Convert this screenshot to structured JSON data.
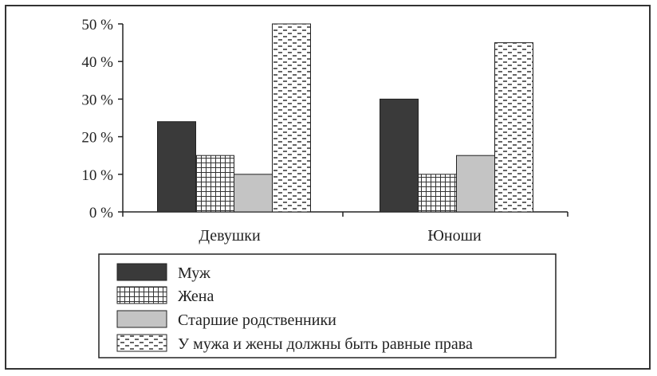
{
  "chart_data": {
    "type": "bar",
    "categories": [
      "Девушки",
      "Юноши"
    ],
    "series": [
      {
        "name": "Муж",
        "values": [
          24,
          30
        ],
        "color": "#3a3a3a",
        "pattern": "solid-dark"
      },
      {
        "name": "Жена",
        "values": [
          15,
          10
        ],
        "color": "#ffffff",
        "pattern": "grid"
      },
      {
        "name": "Старшие родственники",
        "values": [
          10,
          15
        ],
        "color": "#c4c4c4",
        "pattern": "solid-light"
      },
      {
        "name": "У мужа и жены должны быть равные права",
        "values": [
          50,
          45
        ],
        "color": "#ffffff",
        "pattern": "dashes"
      }
    ],
    "y_ticks": [
      "0 %",
      "10 %",
      "20 %",
      "30 %",
      "40 %",
      "50 %"
    ],
    "ylim": [
      0,
      50
    ],
    "grid": false,
    "legend_position": "bottom",
    "title": "",
    "xlabel": "",
    "ylabel": ""
  }
}
